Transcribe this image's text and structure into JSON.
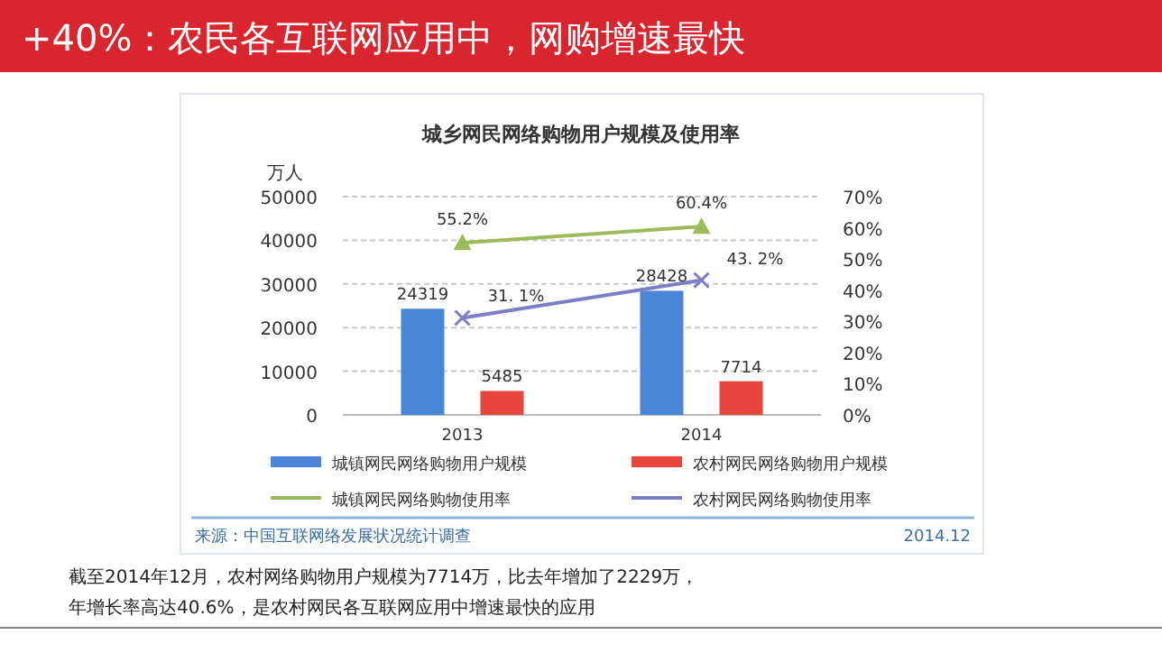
{
  "chart_data": {
    "type": "bar",
    "title": "+40%：农民各互联网应用中，网购增速最快",
    "subtitle": "城乡网民网络购物用户规模及使用率",
    "ylabel": "万人",
    "categories": [
      "2013",
      "2014"
    ],
    "series": [
      {
        "name": "城镇网民网络购物用户规模",
        "color": "#4a86d8",
        "values": [
          24319,
          28428
        ],
        "value_labels": [
          "24319",
          "28428"
        ]
      },
      {
        "name": "农村网民网络购物用户规模",
        "color": "#e8453c",
        "values": [
          5485,
          7714
        ],
        "value_labels": [
          "5485",
          "7714"
        ]
      },
      {
        "name": "城镇网民网络购物使用率",
        "type": "line",
        "axis": "y2",
        "color": "#9bbb59",
        "marker": "triangle",
        "values": [
          55.2,
          60.4
        ],
        "value_labels": [
          "55.2%",
          "60.4%"
        ]
      },
      {
        "name": "农村网民网络购物使用率",
        "type": "line",
        "axis": "y2",
        "color": "#7b7fc4",
        "marker": "cross",
        "values": [
          31.1,
          43.2
        ],
        "value_labels": [
          "31. 1%",
          "43. 2%"
        ]
      }
    ],
    "ylim": [
      0,
      50000
    ],
    "yticks": [
      0,
      10000,
      20000,
      30000,
      40000,
      50000
    ],
    "y2lim": [
      0,
      70
    ],
    "y2ticks": [
      {
        "value": 0,
        "label": "0%"
      },
      {
        "value": 10,
        "label": "10%"
      },
      {
        "value": 20,
        "label": "20%"
      },
      {
        "value": 30,
        "label": "30%"
      },
      {
        "value": 40,
        "label": "40%"
      },
      {
        "value": 50,
        "label": "50%"
      },
      {
        "value": 60,
        "label": "60%"
      },
      {
        "value": 70,
        "label": "70%"
      }
    ],
    "grid": "y",
    "legend": "bottom",
    "annotations": [
      "来源：中国互联网络发展状况统计调查",
      "2014.12",
      "截至2014年12月，农村网络购物用户规模为7714万，比去年增加了2229万，",
      "年增长率高达40.6%，是农村网民各互联网应用中增速最快的应用"
    ]
  }
}
